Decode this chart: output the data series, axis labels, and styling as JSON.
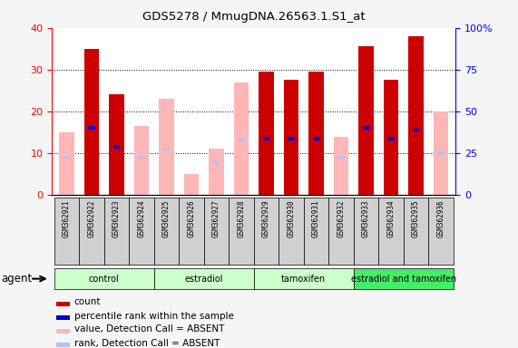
{
  "title": "GDS5278 / MmugDNA.26563.1.S1_at",
  "samples": [
    "GSM362921",
    "GSM362922",
    "GSM362923",
    "GSM362924",
    "GSM362925",
    "GSM362926",
    "GSM362927",
    "GSM362928",
    "GSM362929",
    "GSM362930",
    "GSM362931",
    "GSM362932",
    "GSM362933",
    "GSM362934",
    "GSM362935",
    "GSM362936"
  ],
  "groups": [
    {
      "label": "control",
      "start": 0,
      "end": 3,
      "color": "#ccffcc"
    },
    {
      "label": "estradiol",
      "start": 4,
      "end": 7,
      "color": "#ccffcc"
    },
    {
      "label": "tamoxifen",
      "start": 8,
      "end": 11,
      "color": "#ccffcc"
    },
    {
      "label": "estradiol and tamoxifen",
      "start": 12,
      "end": 15,
      "color": "#44ee66"
    }
  ],
  "count_present": [
    null,
    35.0,
    24.0,
    null,
    null,
    null,
    null,
    null,
    29.5,
    27.5,
    29.5,
    null,
    35.5,
    27.5,
    38.0,
    null
  ],
  "count_absent": [
    15.0,
    null,
    null,
    16.5,
    23.0,
    5.0,
    11.0,
    27.0,
    null,
    null,
    null,
    14.0,
    null,
    null,
    null,
    20.0
  ],
  "rank_absent": [
    9.0,
    null,
    null,
    9.0,
    11.0,
    null,
    7.5,
    13.0,
    null,
    null,
    null,
    9.0,
    null,
    null,
    null,
    10.0
  ],
  "percentile_present": [
    null,
    16.0,
    11.5,
    null,
    null,
    null,
    null,
    null,
    13.5,
    13.5,
    13.5,
    null,
    16.0,
    13.5,
    15.5,
    null
  ],
  "ylim_left": [
    0,
    40
  ],
  "ylim_right": [
    0,
    100
  ],
  "count_color": "#CC0000",
  "count_absent_color": "#FFB6B6",
  "rank_color": "#0000CC",
  "rank_absent_color": "#BBBBFF",
  "legend_items": [
    {
      "color": "#CC0000",
      "label": "count"
    },
    {
      "color": "#0000CC",
      "label": "percentile rank within the sample"
    },
    {
      "color": "#FFB6B6",
      "label": "value, Detection Call = ABSENT"
    },
    {
      "color": "#BBBBFF",
      "label": "rank, Detection Call = ABSENT"
    }
  ]
}
